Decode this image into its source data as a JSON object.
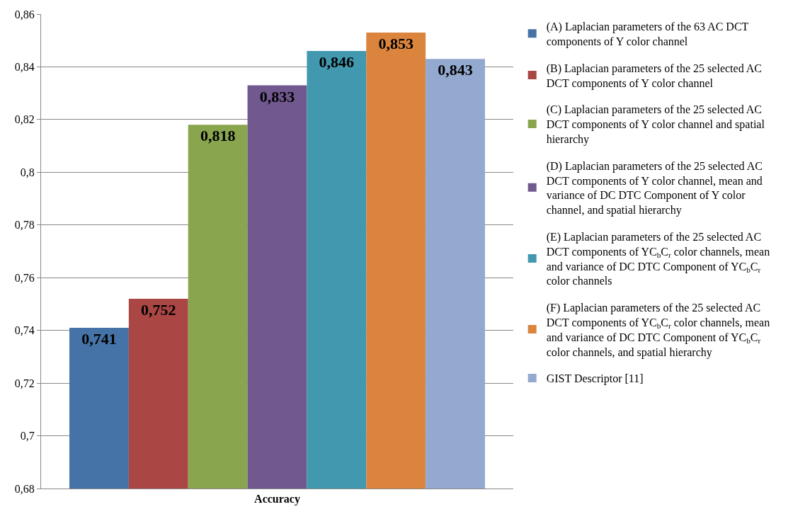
{
  "chart_data": {
    "type": "bar",
    "categories": [
      "Accuracy"
    ],
    "series": [
      {
        "name": "(A) Laplacian parameters of the 63 AC DCT components of Y color channel",
        "color": "#4572a7",
        "values": [
          0.741
        ],
        "value_labels": [
          "0,741"
        ]
      },
      {
        "name": "(B) Laplacian parameters of the 25 selected AC DCT components of Y color channel",
        "color": "#aa4643",
        "values": [
          0.752
        ],
        "value_labels": [
          "0,752"
        ]
      },
      {
        "name": "(C) Laplacian parameters of the 25 selected AC DCT components of Y color channel and spatial hierarchy",
        "color": "#89a54e",
        "values": [
          0.818
        ],
        "value_labels": [
          "0,818"
        ]
      },
      {
        "name": "(D) Laplacian parameters of the 25 selected AC DCT components of Y color channel, mean and variance of DC DTC Component of Y color channel, and spatial hierarchy",
        "color": "#71588f",
        "values": [
          0.833
        ],
        "value_labels": [
          "0,833"
        ]
      },
      {
        "name": "(E) Laplacian parameters of the 25 selected AC DCT components of YC$_{b}$C$_{r}$ color channels, mean and variance of DC DTC Component of YC$_{b}$C$_{r}$ color channels",
        "color": "#4198af",
        "values": [
          0.846
        ],
        "value_labels": [
          "0,846"
        ]
      },
      {
        "name": "(F) Laplacian parameters of the 25 selected AC DCT components of YC$_{b}$C$_{r}$ color channels, mean and variance of DC DTC Component of YC$_{b}$C$_{r}$ color channels, and spatial hierarchy",
        "color": "#db843d",
        "values": [
          0.853
        ],
        "value_labels": [
          "0,853"
        ]
      },
      {
        "name": "GIST Descriptor [11]",
        "color": "#93a9cf",
        "values": [
          0.843
        ],
        "value_labels": [
          "0,843"
        ]
      }
    ],
    "ylim": [
      0.68,
      0.86
    ],
    "yticks": [
      {
        "value": 0.68,
        "label": "0,68"
      },
      {
        "value": 0.7,
        "label": "0,7"
      },
      {
        "value": 0.72,
        "label": "0,72"
      },
      {
        "value": 0.74,
        "label": "0,74"
      },
      {
        "value": 0.76,
        "label": "0,76"
      },
      {
        "value": 0.78,
        "label": "0,78"
      },
      {
        "value": 0.8,
        "label": "0,8"
      },
      {
        "value": 0.82,
        "label": "0,82"
      },
      {
        "value": 0.84,
        "label": "0,84"
      },
      {
        "value": 0.86,
        "label": "0,86"
      }
    ],
    "grid": "y",
    "legend": "right"
  }
}
